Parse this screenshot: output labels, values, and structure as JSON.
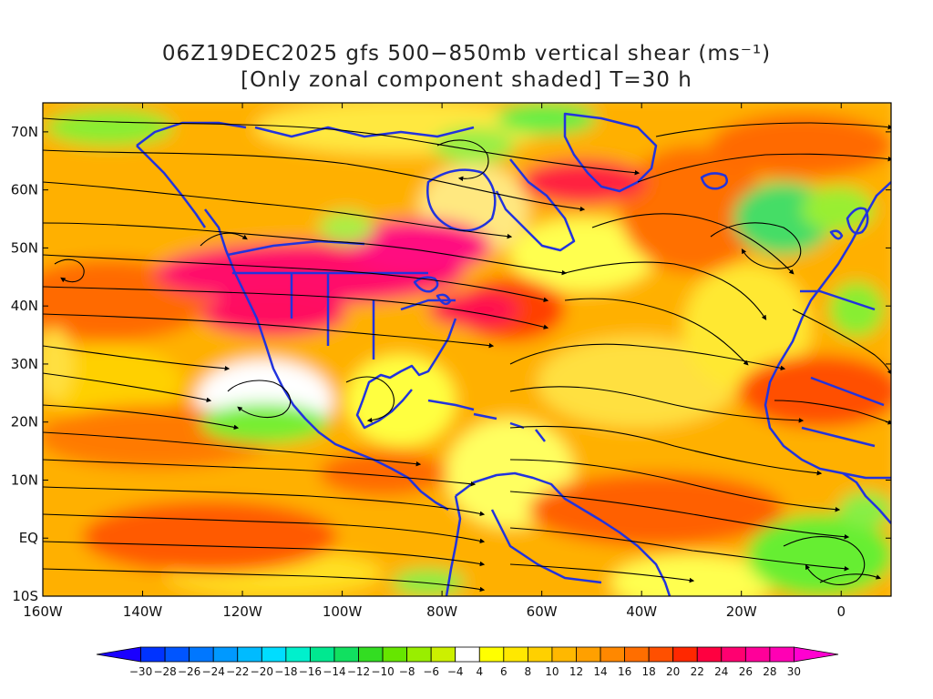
{
  "title": {
    "line1": "06Z19DEC2025 gfs 500−850mb vertical shear (ms⁻¹)",
    "line2": "[Only zonal component shaded] T=30 h"
  },
  "map": {
    "lon_range": [
      -160,
      10
    ],
    "lat_range": [
      -10,
      75
    ],
    "lon_ticks": [
      {
        "value": -160,
        "label": "160W"
      },
      {
        "value": -140,
        "label": "140W"
      },
      {
        "value": -120,
        "label": "120W"
      },
      {
        "value": -100,
        "label": "100W"
      },
      {
        "value": -80,
        "label": "80W"
      },
      {
        "value": -60,
        "label": "60W"
      },
      {
        "value": -40,
        "label": "40W"
      },
      {
        "value": -20,
        "label": "20W"
      },
      {
        "value": 0,
        "label": "0"
      }
    ],
    "lat_ticks": [
      {
        "value": 70,
        "label": "70N"
      },
      {
        "value": 60,
        "label": "60N"
      },
      {
        "value": 50,
        "label": "50N"
      },
      {
        "value": 40,
        "label": "40N"
      },
      {
        "value": 30,
        "label": "30N"
      },
      {
        "value": 20,
        "label": "20N"
      },
      {
        "value": 10,
        "label": "10N"
      },
      {
        "value": 0,
        "label": "EQ"
      },
      {
        "value": -10,
        "label": "10S"
      }
    ],
    "coastline_color": "#2233dd",
    "streamline_color": "#000000"
  },
  "colorbar": {
    "levels": [
      -30,
      -28,
      -26,
      -24,
      -22,
      -20,
      -18,
      -16,
      -14,
      -12,
      -10,
      -8,
      -6,
      -4,
      4,
      6,
      8,
      10,
      12,
      14,
      16,
      18,
      20,
      22,
      24,
      26,
      28,
      30
    ],
    "colors": [
      "#1a00ff",
      "#0033ff",
      "#0055ff",
      "#0077ff",
      "#0099ff",
      "#00bbff",
      "#00ddff",
      "#00f0cc",
      "#00e890",
      "#11e060",
      "#33dd22",
      "#66e600",
      "#99ee00",
      "#ccf000",
      "#ffffff",
      "#ffff00",
      "#ffe800",
      "#ffd000",
      "#ffb800",
      "#ffa000",
      "#ff8800",
      "#ff6e00",
      "#ff5000",
      "#ff2800",
      "#ff0040",
      "#ff0070",
      "#ff0099",
      "#ff00b4",
      "#ff00d0"
    ]
  }
}
